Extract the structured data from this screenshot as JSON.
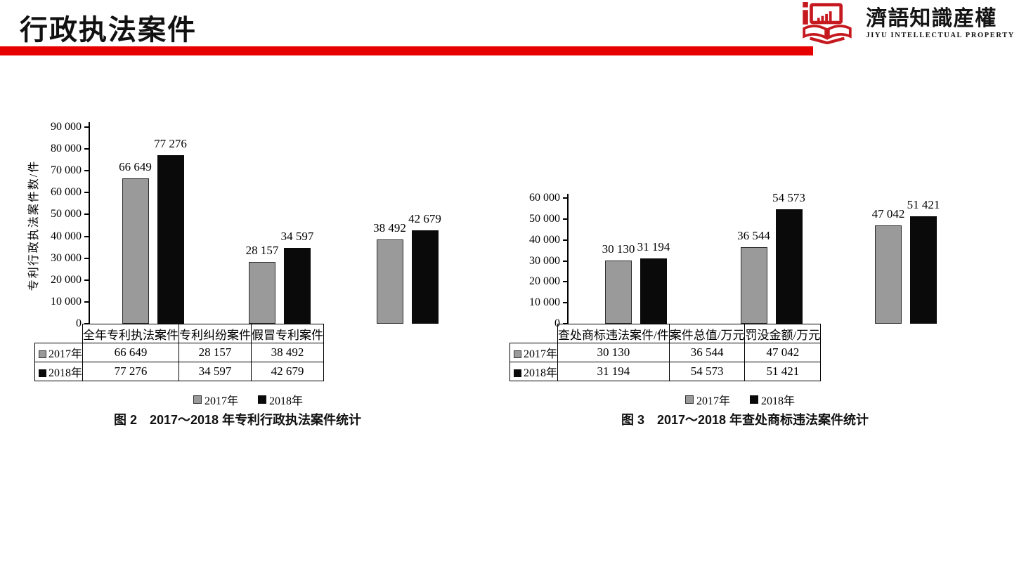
{
  "header": {
    "title": "行政执法案件",
    "rule_color": "#e60000"
  },
  "logo": {
    "icon": "open-book-with-chart",
    "color": "#c5191f",
    "name_cn": "濟語知識産權",
    "name_en": "JIYU INTELLECTUAL PROPERTY"
  },
  "series_colors": {
    "2017年": "#9a9a9a",
    "2018年": "#0a0a0a"
  },
  "chart_data": [
    {
      "type": "bar",
      "figure_caption": "图 2　2017～2018 年专利行政执法案件统计",
      "ylabel": "专利行政执法案件数/件",
      "categories": [
        "全年专利执法案件",
        "专利纠纷案件",
        "假冒专利案件"
      ],
      "series": [
        {
          "name": "2017年",
          "fill": "#9a9a9a",
          "border": "#2b2b2b",
          "values": [
            66649,
            28157,
            38492
          ],
          "value_labels": [
            "66 649",
            "28 157",
            "38 492"
          ]
        },
        {
          "name": "2018年",
          "fill": "#0a0a0a",
          "border": "#0a0a0a",
          "values": [
            77276,
            34597,
            42679
          ],
          "value_labels": [
            "77 276",
            "34 597",
            "42 679"
          ]
        }
      ],
      "ylim": [
        0,
        90000
      ],
      "ytick_step": 10000,
      "ytick_labels": [
        "90 000",
        "80 000",
        "70 000",
        "60 000",
        "50 000",
        "40 000",
        "30 000",
        "20 000",
        "10 000",
        "0"
      ],
      "grid": false,
      "legend": [
        "2017年",
        "2018年"
      ],
      "legend_position": "bottom",
      "data_table": true
    },
    {
      "type": "bar",
      "figure_caption": "图 3　2017～2018 年查处商标违法案件统计",
      "ylabel": "",
      "categories": [
        "查处商标违法案件/件",
        "案件总值/万元",
        "罚没金额/万元"
      ],
      "series": [
        {
          "name": "2017年",
          "fill": "#9a9a9a",
          "border": "#2b2b2b",
          "values": [
            30130,
            36544,
            47042
          ],
          "value_labels": [
            "30 130",
            "36 544",
            "47 042"
          ]
        },
        {
          "name": "2018年",
          "fill": "#0a0a0a",
          "border": "#0a0a0a",
          "values": [
            31194,
            54573,
            51421
          ],
          "value_labels": [
            "31 194",
            "54 573",
            "51 421"
          ]
        }
      ],
      "ylim": [
        0,
        60000
      ],
      "ytick_step": 10000,
      "ytick_labels": [
        "60 000",
        "50 000",
        "40 000",
        "30 000",
        "20 000",
        "10 000",
        "0"
      ],
      "grid": false,
      "legend": [
        "2017年",
        "2018年"
      ],
      "legend_position": "bottom",
      "data_table": true
    }
  ]
}
